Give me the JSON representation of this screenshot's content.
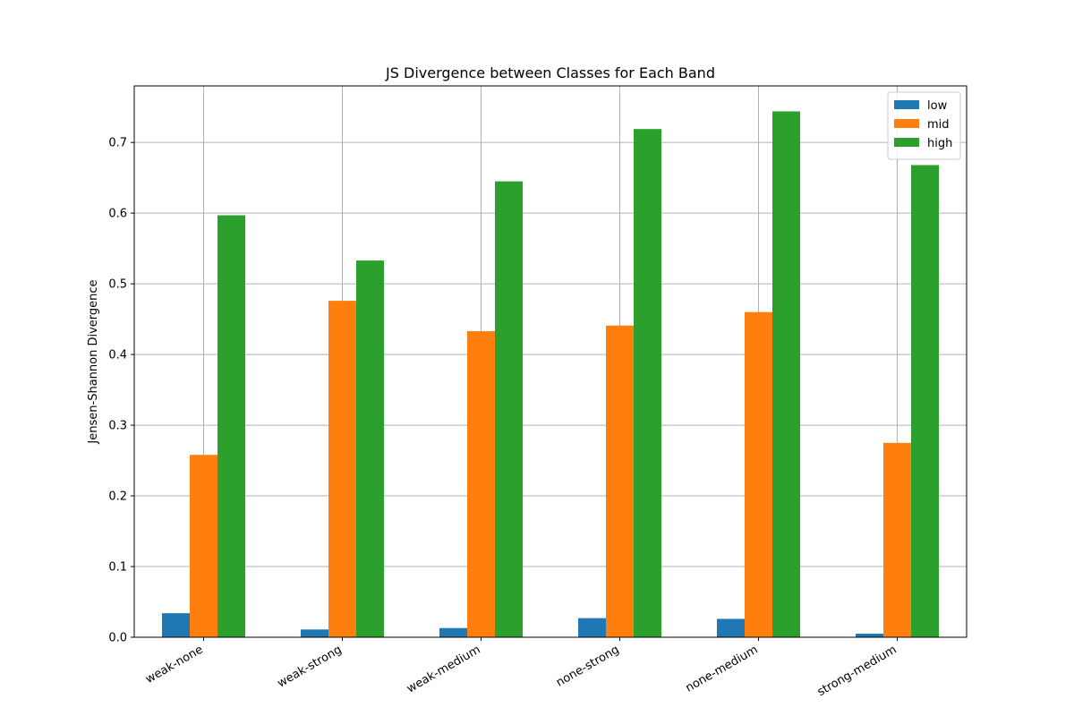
{
  "chart_data": {
    "type": "bar",
    "title": "JS Divergence between Classes for Each Band",
    "xlabel": "",
    "ylabel": "Jensen-Shannon Divergence",
    "categories": [
      "weak-none",
      "weak-strong",
      "weak-medium",
      "none-strong",
      "none-medium",
      "strong-medium"
    ],
    "series": [
      {
        "name": "low",
        "color": "#1f77b4",
        "values": [
          0.034,
          0.011,
          0.013,
          0.027,
          0.026,
          0.005
        ]
      },
      {
        "name": "mid",
        "color": "#ff7f0e",
        "values": [
          0.258,
          0.476,
          0.433,
          0.441,
          0.46,
          0.275
        ]
      },
      {
        "name": "high",
        "color": "#2ca02c",
        "values": [
          0.597,
          0.533,
          0.645,
          0.719,
          0.744,
          0.668
        ]
      }
    ],
    "ylim": [
      0,
      0.78
    ],
    "yticks": [
      0.0,
      0.1,
      0.2,
      0.3,
      0.4,
      0.5,
      0.6,
      0.7
    ],
    "ytick_labels": [
      "0.0",
      "0.1",
      "0.2",
      "0.3",
      "0.4",
      "0.5",
      "0.6",
      "0.7"
    ],
    "grid": true,
    "legend_position": "top-right"
  }
}
